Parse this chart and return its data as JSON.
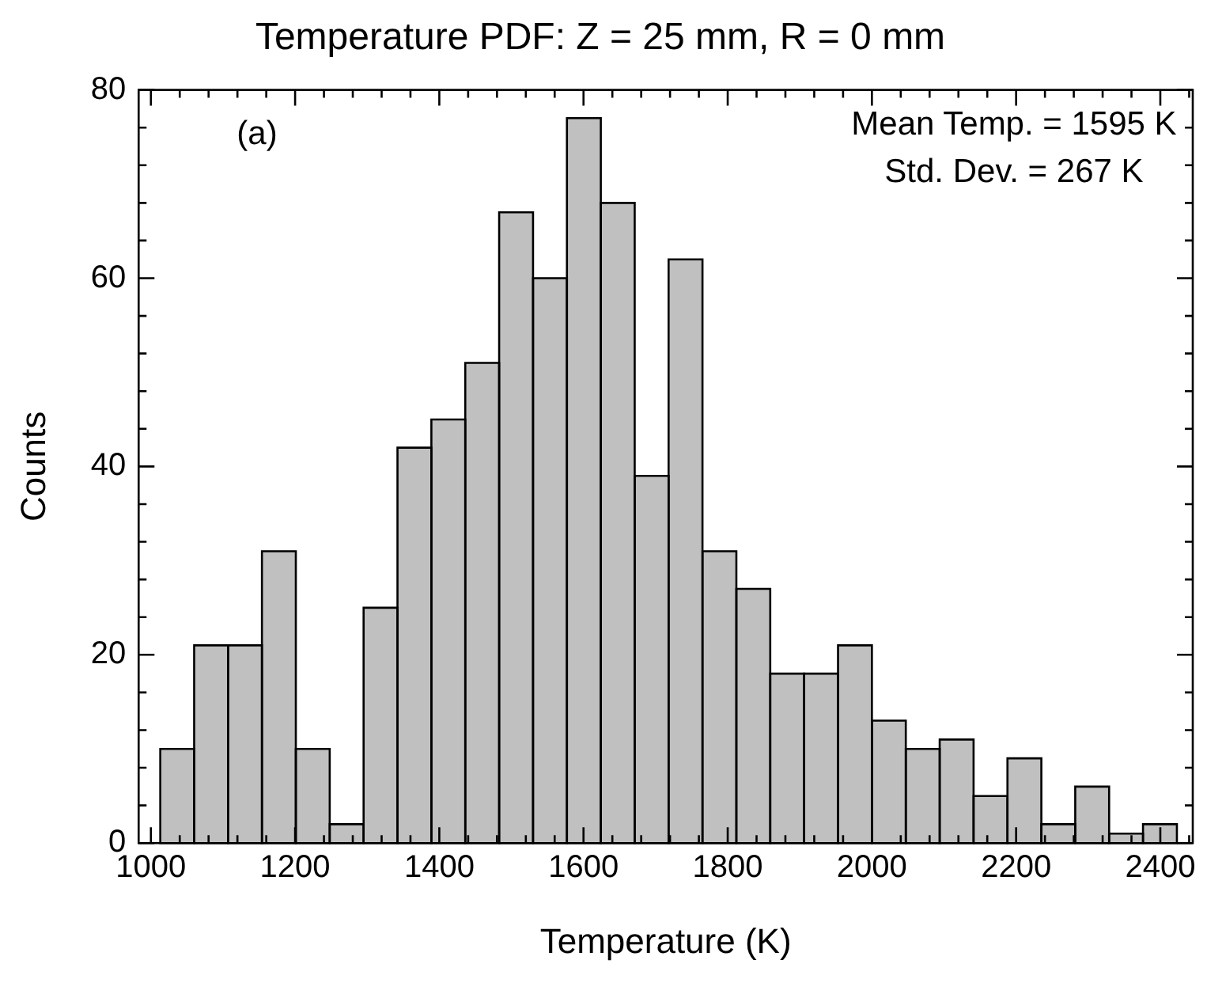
{
  "chart_data": {
    "type": "histogram",
    "title": "Temperature PDF: Z = 25 mm, R = 0 mm",
    "xlabel": "Temperature (K)",
    "ylabel": "Counts",
    "annotations": [
      "(a)",
      "Mean Temp. = 1595 K",
      "Std. Dev. = 267 K"
    ],
    "bins": [
      1013,
      1060,
      1107,
      1154,
      1201,
      1248,
      1295,
      1342,
      1389,
      1436,
      1483,
      1530,
      1577,
      1624,
      1671,
      1718,
      1765,
      1812,
      1859,
      1906,
      1953,
      2000,
      2047,
      2094,
      2141,
      2188,
      2235,
      2282,
      2329,
      2376,
      2423
    ],
    "values": [
      10,
      21,
      21,
      31,
      10,
      2,
      25,
      42,
      45,
      51,
      67,
      60,
      77,
      68,
      39,
      62,
      31,
      27,
      18,
      18,
      21,
      13,
      10,
      11,
      5,
      9,
      2,
      6,
      1,
      2
    ],
    "color": "#c0c0c0",
    "xlim": [
      983,
      2445
    ],
    "xticks": [
      1000,
      {
        "value": 1040,
        "label": null
      },
      {
        "value": 1080,
        "label": null
      },
      {
        "value": 1120,
        "label": null
      },
      {
        "value": 1160,
        "label": null
      },
      1200,
      {
        "value": 1240,
        "label": null
      },
      {
        "value": 1280,
        "label": null
      },
      {
        "value": 1320,
        "label": null
      },
      {
        "value": 1360,
        "label": null
      },
      1400,
      {
        "value": 1440,
        "label": null
      },
      {
        "value": 1480,
        "label": null
      },
      {
        "value": 1520,
        "label": null
      },
      {
        "value": 1560,
        "label": null
      },
      1600,
      {
        "value": 1640,
        "label": null
      },
      {
        "value": 1680,
        "label": null
      },
      {
        "value": 1720,
        "label": null
      },
      {
        "value": 1760,
        "label": null
      },
      1800,
      {
        "value": 1840,
        "label": null
      },
      {
        "value": 1880,
        "label": null
      },
      {
        "value": 1920,
        "label": null
      },
      {
        "value": 1960,
        "label": null
      },
      2000,
      {
        "value": 2040,
        "label": null
      },
      {
        "value": 2080,
        "label": null
      },
      {
        "value": 2120,
        "label": null
      },
      {
        "value": 2160,
        "label": null
      },
      2200,
      {
        "value": 2240,
        "label": null
      },
      {
        "value": 2280,
        "label": null
      },
      {
        "value": 2320,
        "label": null
      },
      {
        "value": 2360,
        "label": null
      },
      2400,
      {
        "value": 2440,
        "label": null
      }
    ],
    "ylim": [
      0,
      80
    ],
    "yticks": [
      0,
      {
        "value": 4,
        "label": null
      },
      {
        "value": 8,
        "label": null
      },
      {
        "value": 12,
        "label": null
      },
      {
        "value": 16,
        "label": null
      },
      20,
      {
        "value": 24,
        "label": null
      },
      {
        "value": 28,
        "label": null
      },
      {
        "value": 32,
        "label": null
      },
      {
        "value": 36,
        "label": null
      },
      40,
      {
        "value": 44,
        "label": null
      },
      {
        "value": 48,
        "label": null
      },
      {
        "value": 52,
        "label": null
      },
      {
        "value": 56,
        "label": null
      },
      60,
      {
        "value": 64,
        "label": null
      },
      {
        "value": 68,
        "label": null
      },
      {
        "value": 72,
        "label": null
      },
      {
        "value": 76,
        "label": null
      },
      80
    ],
    "grid": false,
    "legend": false
  }
}
